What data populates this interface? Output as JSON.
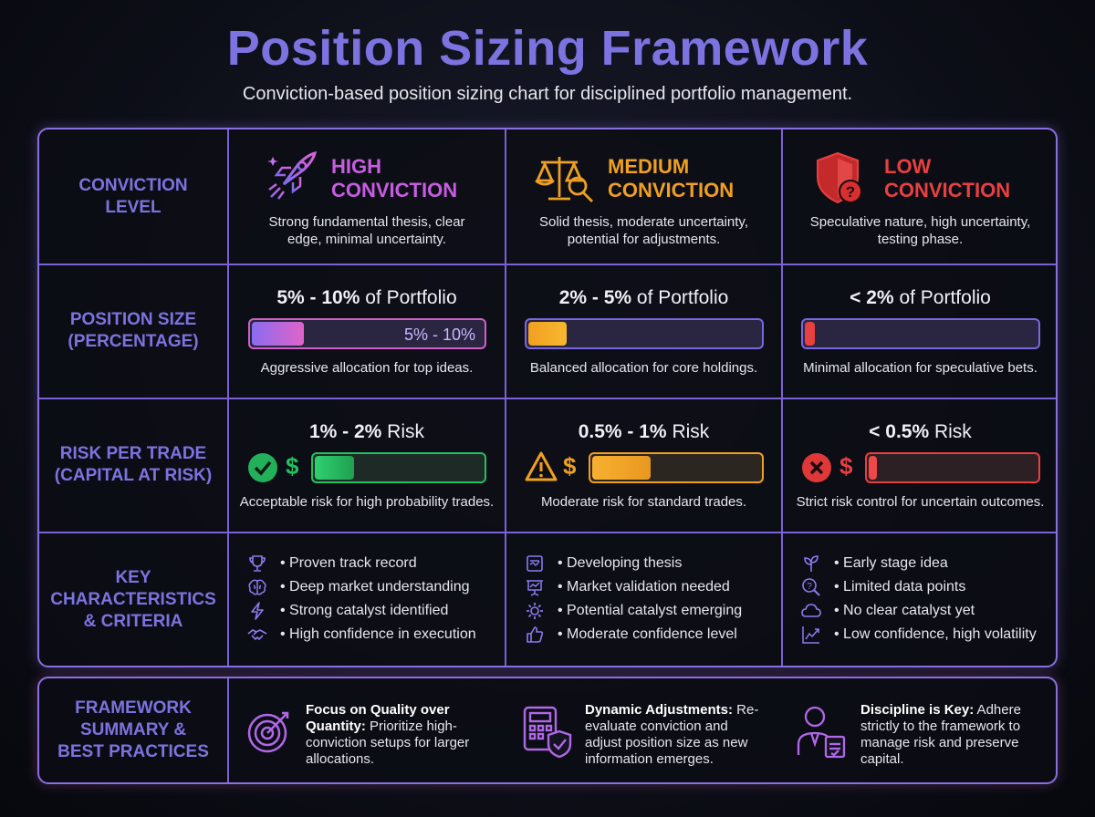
{
  "title": "Position Sizing Framework",
  "subtitle": "Conviction-based position sizing chart for disciplined portfolio management.",
  "row_labels": {
    "conviction": [
      "CONVICTION",
      "LEVEL"
    ],
    "size": [
      "POSITION SIZE",
      "(PERCENTAGE)"
    ],
    "risk": [
      "RISK PER TRADE",
      "(CAPITAL AT RISK)"
    ],
    "key": [
      "KEY",
      "CHARACTERISTICS",
      "& CRITERIA"
    ],
    "summary": [
      "FRAMEWORK",
      "SUMMARY &",
      "BEST PRACTICES"
    ]
  },
  "columns": [
    {
      "title_line1": "HIGH",
      "title_line2": "CONVICTION",
      "color": "#c75de0",
      "icon": "rocket-icon",
      "desc_line1": "Strong fundamental thesis, clear",
      "desc_line2": "edge, minimal uncertainty.",
      "size_range": "5% - 10%",
      "size_suffix": " of Portfolio",
      "size_fill": 0.23,
      "size_bar_label": "5% - 10%",
      "size_note": "Aggressive allocation for top ideas.",
      "risk_range": "1% - 2%",
      "risk_suffix": " Risk",
      "risk_fill": 0.24,
      "risk_icon": "check-circle-icon",
      "risk_note": "Acceptable risk for high probability trades.",
      "traits": [
        {
          "icon": "trophy-icon",
          "text": "• Proven track record"
        },
        {
          "icon": "brain-icon",
          "text": "• Deep market understanding"
        },
        {
          "icon": "lightning-icon",
          "text": "• Strong catalyst identified"
        },
        {
          "icon": "handshake-icon",
          "text": "• High confidence in execution"
        }
      ]
    },
    {
      "title_line1": "MEDIUM",
      "title_line2": "CONVICTION",
      "color": "#f0a020",
      "icon": "scales-icon",
      "desc_line1": "Solid thesis, moderate uncertainty,",
      "desc_line2": "potential for adjustments.",
      "size_range": "2% - 5%",
      "size_suffix": " of Portfolio",
      "size_fill": 0.17,
      "size_bar_label": "",
      "size_note": "Balanced allocation for core holdings.",
      "risk_range": "0.5% - 1%",
      "risk_suffix": " Risk",
      "risk_fill": 0.35,
      "risk_icon": "warning-icon",
      "risk_note": "Moderate risk for standard trades.",
      "traits": [
        {
          "icon": "document-icon",
          "text": "• Developing thesis"
        },
        {
          "icon": "presentation-icon",
          "text": "• Market validation needed"
        },
        {
          "icon": "gear-icon",
          "text": "• Potential catalyst emerging"
        },
        {
          "icon": "thumbs-up-icon",
          "text": "• Moderate confidence level"
        }
      ]
    },
    {
      "title_line1": "LOW",
      "title_line2": "CONVICTION",
      "color": "#e84040",
      "icon": "shield-question-icon",
      "desc_line1": "Speculative nature, high uncertainty,",
      "desc_line2": "testing phase.",
      "size_range": "< 2%",
      "size_suffix": " of Portfolio",
      "size_fill": 0.05,
      "size_bar_label": "",
      "size_note": "Minimal allocation for speculative bets.",
      "risk_range": "< 0.5%",
      "risk_suffix": " Risk",
      "risk_fill": 0.06,
      "risk_icon": "x-circle-icon",
      "risk_note": "Strict risk control for uncertain outcomes.",
      "traits": [
        {
          "icon": "sprout-icon",
          "text": "• Early stage idea"
        },
        {
          "icon": "magnifier-question-icon",
          "text": "• Limited data points"
        },
        {
          "icon": "cloud-icon",
          "text": "• No clear catalyst yet"
        },
        {
          "icon": "trend-chart-icon",
          "text": "• Low confidence, high volatility"
        }
      ]
    }
  ],
  "summary": [
    {
      "icon": "target-icon",
      "bold": "Focus on Quality over Quantity:",
      "text": " Prioritize high-conviction setups for larger allocations."
    },
    {
      "icon": "calculator-shield-icon",
      "bold": "Dynamic Adjustments:",
      "text": " Re-evaluate conviction and adjust position size as new information emerges."
    },
    {
      "icon": "person-clipboard-icon",
      "bold": "Discipline is Key:",
      "text": " Adhere strictly to the framework to manage risk and preserve capital."
    }
  ]
}
